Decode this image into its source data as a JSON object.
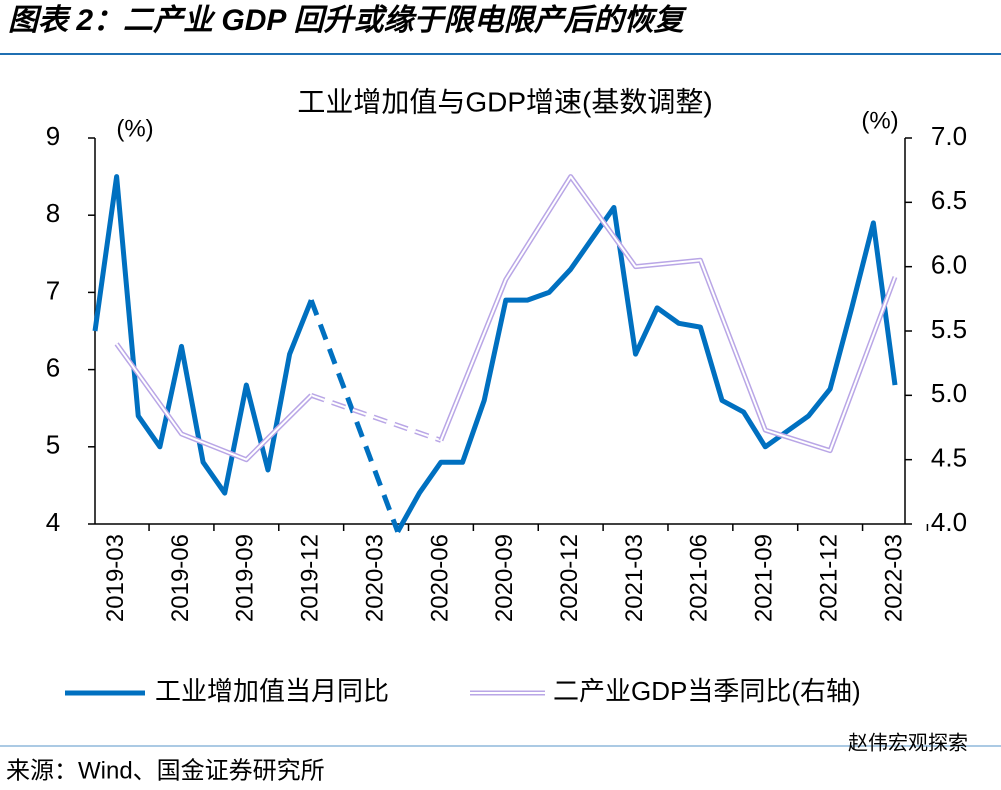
{
  "header": {
    "title": "图表 2：二产业 GDP 回升或缘于限电限产后的恢复"
  },
  "chart_data": {
    "type": "line",
    "title": "工业增加值与GDP增速(基数调整)",
    "y_label": "(%)",
    "y2_label": "(%)",
    "gap_style": "dashed",
    "categories": [
      null,
      "2019-03",
      null,
      null,
      "2019-06",
      null,
      null,
      "2019-09",
      null,
      null,
      "2019-12",
      null,
      null,
      "2020-03",
      null,
      null,
      "2020-06",
      null,
      null,
      "2020-09",
      null,
      null,
      "2020-12",
      null,
      null,
      "2021-03",
      null,
      null,
      "2021-06",
      null,
      null,
      "2021-09",
      null,
      null,
      "2021-12",
      null,
      null,
      "2022-03"
    ],
    "ylim": [
      4,
      9
    ],
    "yticks": [
      4,
      5,
      6,
      7,
      8,
      9
    ],
    "y2lim": [
      4,
      7
    ],
    "y2ticks": [
      {
        "value": 4,
        "label": "4.0"
      },
      {
        "value": 4.5,
        "label": "4.5"
      },
      {
        "value": 5,
        "label": "5.0"
      },
      {
        "value": 5.5,
        "label": "5.5"
      },
      {
        "value": 6,
        "label": "6.0"
      },
      {
        "value": 6.5,
        "label": "6.5"
      },
      {
        "value": 7,
        "label": "7.0"
      }
    ],
    "series": [
      {
        "name": "工业增加值当月同比",
        "color": "#0070c0",
        "values": [
          6.5,
          8.5,
          5.4,
          5.0,
          6.3,
          4.8,
          4.4,
          5.8,
          4.7,
          6.2,
          6.9,
          null,
          null,
          null,
          3.9,
          4.4,
          4.8,
          4.8,
          5.6,
          6.9,
          6.9,
          7.0,
          7.3,
          7.7,
          8.1,
          6.2,
          6.8,
          6.6,
          6.55,
          5.6,
          5.45,
          5.0,
          5.2,
          5.4,
          5.75,
          6.8,
          7.9,
          5.8
        ]
      },
      {
        "name": "二产业GDP当季同比(右轴)",
        "color": "#b9a6e6",
        "axis": "y2",
        "x": [
          "2019-03",
          "2019-06",
          "2019-09",
          "2019-12",
          "2020-03",
          "2020-06",
          "2020-09",
          "2020-12",
          "2021-03",
          "2021-06",
          "2021-09",
          "2021-12",
          "2022-03"
        ],
        "values": [
          5.4,
          4.7,
          4.5,
          5.0,
          null,
          4.65,
          5.9,
          6.7,
          6.0,
          6.05,
          4.73,
          4.57,
          5.92
        ]
      }
    ]
  },
  "footer": {
    "source": "来源：Wind、国金证券研究所",
    "watermark": "赵伟宏观探索"
  }
}
